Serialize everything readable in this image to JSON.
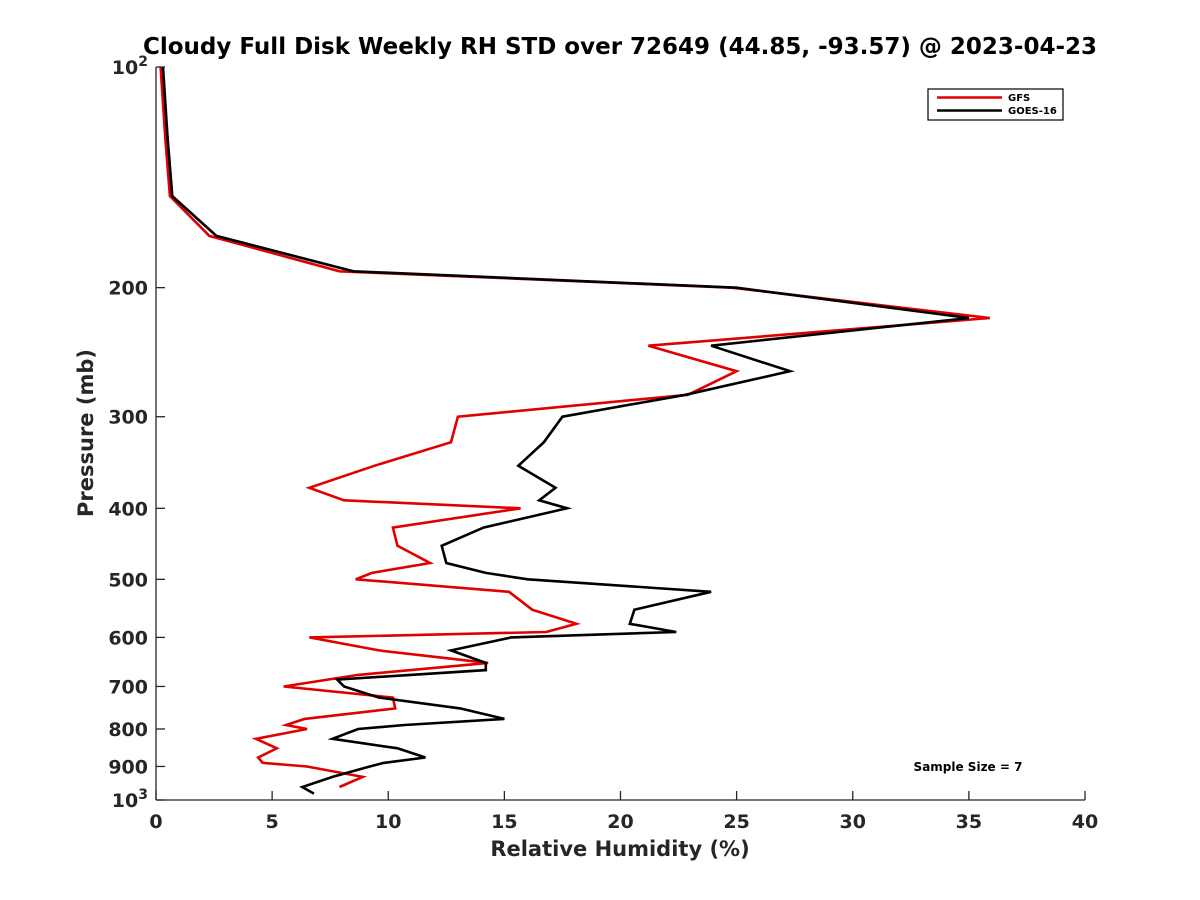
{
  "chart_data": {
    "type": "line",
    "title": "Cloudy Full Disk Weekly RH STD over 72649 (44.85, -93.57) @ 2023-04-23",
    "xlabel": "Relative Humidity (%)",
    "ylabel": "Pressure (mb)",
    "xlim": [
      0,
      40
    ],
    "ylim": [
      100,
      1000
    ],
    "y_scale": "log",
    "y_reversed": true,
    "grid": false,
    "legend_position": "top-right",
    "x_ticks": [
      "0",
      "5",
      "10",
      "15",
      "20",
      "25",
      "30",
      "35",
      "40"
    ],
    "y_ticks": [
      {
        "value": 100,
        "base": "10",
        "exp": "2"
      },
      {
        "value": 200,
        "label": "200"
      },
      {
        "value": 300,
        "label": "300"
      },
      {
        "value": 400,
        "label": "400"
      },
      {
        "value": 500,
        "label": "500"
      },
      {
        "value": 600,
        "label": "600"
      },
      {
        "value": 700,
        "label": "700"
      },
      {
        "value": 800,
        "label": "800"
      },
      {
        "value": 900,
        "label": "900"
      },
      {
        "value": 1000,
        "base": "10",
        "exp": "3"
      }
    ],
    "annotation": "Sample Size = 7",
    "series": [
      {
        "name": "GFS",
        "color": "#e00000",
        "points": [
          [
            0.2,
            100
          ],
          [
            0.4,
            125
          ],
          [
            0.6,
            150
          ],
          [
            2.3,
            170
          ],
          [
            7.9,
            190
          ],
          [
            24.8,
            200
          ],
          [
            35.9,
            220
          ],
          [
            21.2,
            240
          ],
          [
            25.0,
            260
          ],
          [
            22.9,
            280
          ],
          [
            13.0,
            300
          ],
          [
            12.7,
            325
          ],
          [
            9.4,
            350
          ],
          [
            6.6,
            375
          ],
          [
            8.1,
            390
          ],
          [
            15.7,
            400
          ],
          [
            10.2,
            425
          ],
          [
            10.4,
            450
          ],
          [
            11.8,
            475
          ],
          [
            9.3,
            490
          ],
          [
            8.6,
            500
          ],
          [
            15.2,
            520
          ],
          [
            16.2,
            550
          ],
          [
            18.1,
            575
          ],
          [
            16.8,
            590
          ],
          [
            6.6,
            600
          ],
          [
            9.6,
            625
          ],
          [
            14.3,
            650
          ],
          [
            8.7,
            675
          ],
          [
            5.5,
            700
          ],
          [
            10.2,
            725
          ],
          [
            10.3,
            750
          ],
          [
            6.4,
            775
          ],
          [
            5.6,
            790
          ],
          [
            6.5,
            800
          ],
          [
            4.3,
            825
          ],
          [
            5.2,
            850
          ],
          [
            4.4,
            875
          ],
          [
            4.6,
            890
          ],
          [
            6.5,
            900
          ],
          [
            8.9,
            930
          ],
          [
            7.9,
            960
          ]
        ]
      },
      {
        "name": "GOES-16",
        "color": "#000000",
        "points": [
          [
            0.3,
            100
          ],
          [
            0.5,
            125
          ],
          [
            0.7,
            150
          ],
          [
            2.6,
            170
          ],
          [
            8.5,
            190
          ],
          [
            25.0,
            200
          ],
          [
            35.0,
            220
          ],
          [
            23.9,
            240
          ],
          [
            27.3,
            260
          ],
          [
            22.8,
            280
          ],
          [
            17.5,
            300
          ],
          [
            16.7,
            325
          ],
          [
            15.6,
            350
          ],
          [
            17.2,
            375
          ],
          [
            16.5,
            390
          ],
          [
            17.7,
            400
          ],
          [
            14.1,
            425
          ],
          [
            12.3,
            450
          ],
          [
            12.5,
            475
          ],
          [
            14.2,
            490
          ],
          [
            16.0,
            500
          ],
          [
            23.9,
            520
          ],
          [
            20.6,
            550
          ],
          [
            20.4,
            575
          ],
          [
            22.4,
            590
          ],
          [
            15.3,
            600
          ],
          [
            12.7,
            625
          ],
          [
            14.2,
            650
          ],
          [
            14.2,
            665
          ],
          [
            7.8,
            685
          ],
          [
            8.1,
            700
          ],
          [
            9.6,
            725
          ],
          [
            13.1,
            750
          ],
          [
            15.0,
            775
          ],
          [
            10.7,
            790
          ],
          [
            8.7,
            800
          ],
          [
            7.6,
            825
          ],
          [
            10.4,
            850
          ],
          [
            11.6,
            875
          ],
          [
            9.8,
            890
          ],
          [
            9.2,
            900
          ],
          [
            7.6,
            930
          ],
          [
            6.3,
            960
          ],
          [
            6.8,
            980
          ]
        ]
      }
    ]
  }
}
